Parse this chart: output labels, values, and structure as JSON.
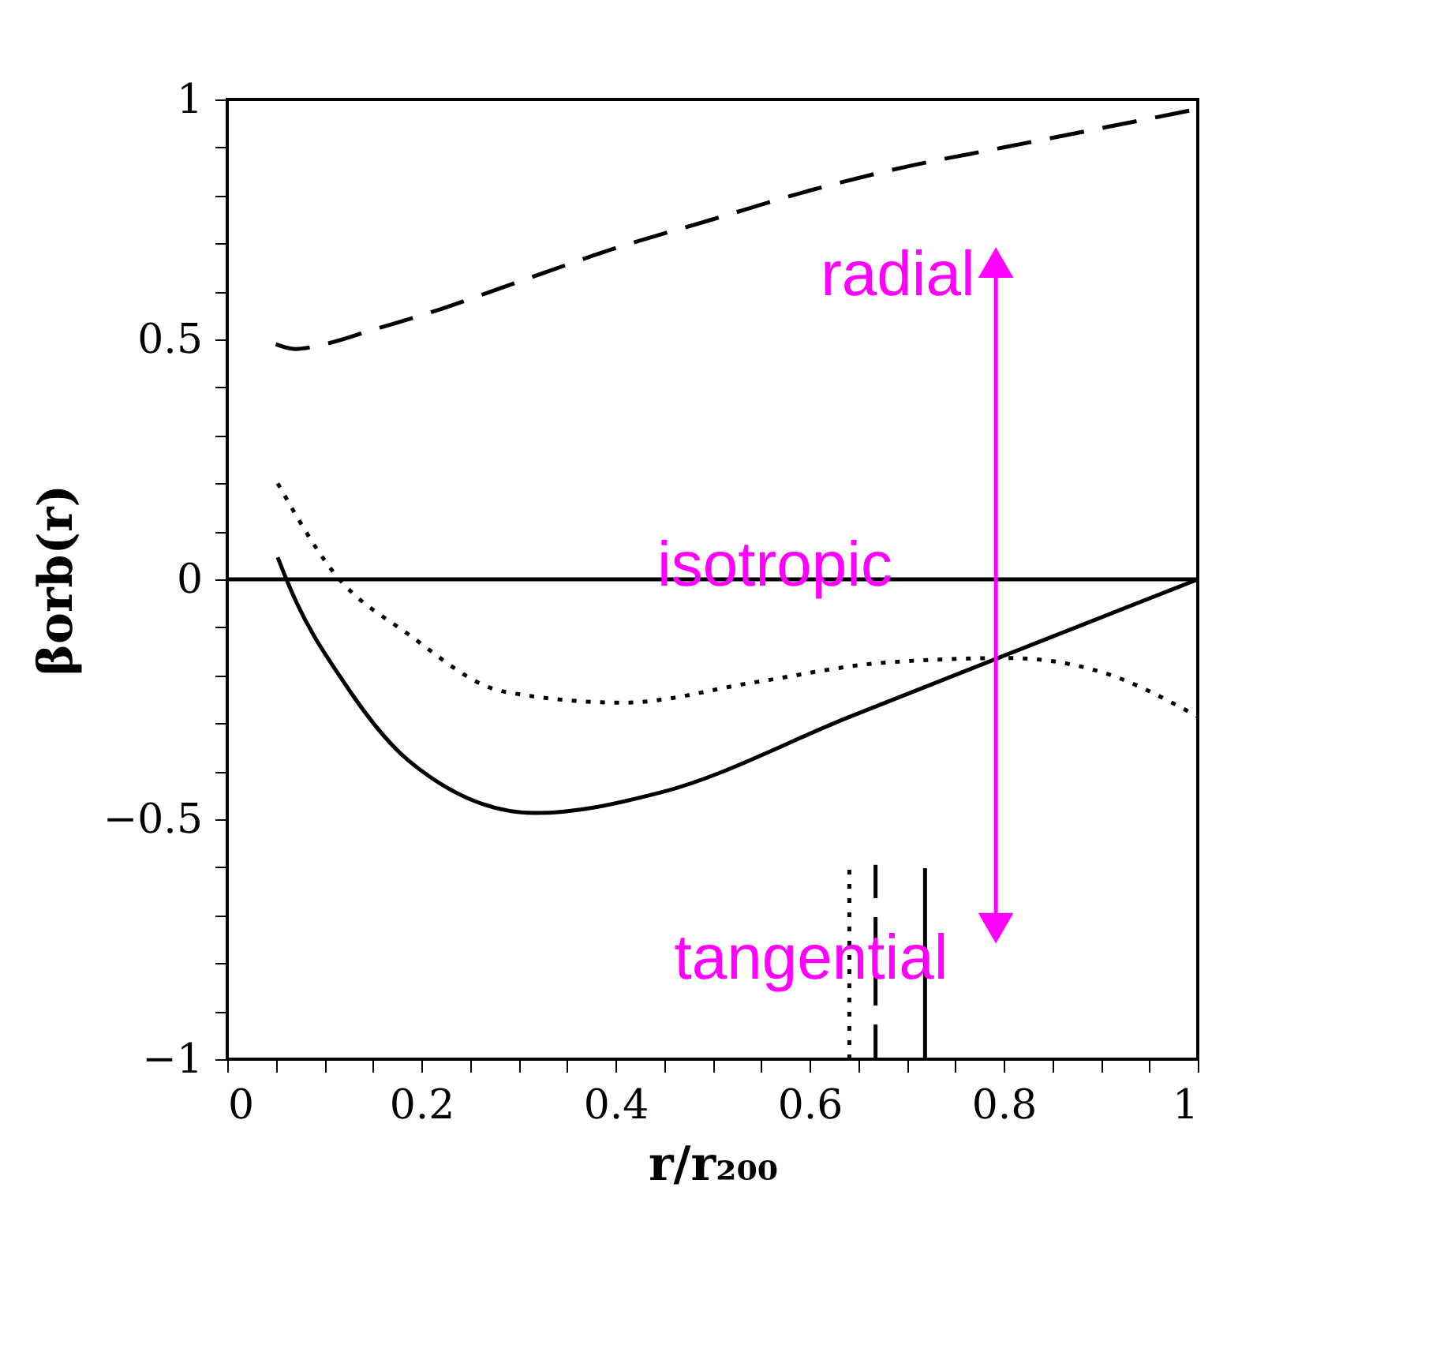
{
  "chart_data": {
    "type": "line",
    "xlabel": "r/r₂₀₀",
    "ylabel": "βorb(r)",
    "xlim": [
      0,
      1
    ],
    "ylim": [
      -1,
      1
    ],
    "xticks": [
      0,
      {
        "value": 0.05,
        "label": null
      },
      {
        "value": 0.1,
        "label": null
      },
      {
        "value": 0.15,
        "label": null
      },
      0.2,
      {
        "value": 0.25,
        "label": null
      },
      {
        "value": 0.3,
        "label": null
      },
      {
        "value": 0.35,
        "label": null
      },
      0.4,
      {
        "value": 0.45,
        "label": null
      },
      {
        "value": 0.5,
        "label": null
      },
      {
        "value": 0.55,
        "label": null
      },
      0.6,
      {
        "value": 0.65,
        "label": null
      },
      {
        "value": 0.7,
        "label": null
      },
      {
        "value": 0.75,
        "label": null
      },
      0.8,
      {
        "value": 0.85,
        "label": null
      },
      {
        "value": 0.9,
        "label": null
      },
      {
        "value": 0.95,
        "label": null
      },
      1
    ],
    "yticks": [
      {
        "value": -1,
        "label": "−1"
      },
      {
        "value": -0.9,
        "label": null
      },
      {
        "value": -0.8,
        "label": null
      },
      {
        "value": -0.7,
        "label": null
      },
      {
        "value": -0.6,
        "label": null
      },
      {
        "value": -0.5,
        "label": "−0.5"
      },
      {
        "value": -0.4,
        "label": null
      },
      {
        "value": -0.3,
        "label": null
      },
      {
        "value": -0.2,
        "label": null
      },
      {
        "value": -0.1,
        "label": null
      },
      0,
      {
        "value": 0.1,
        "label": null
      },
      {
        "value": 0.2,
        "label": null
      },
      {
        "value": 0.3,
        "label": null
      },
      {
        "value": 0.4,
        "label": null
      },
      0.5,
      {
        "value": 0.6,
        "label": null
      },
      {
        "value": 0.7,
        "label": null
      },
      {
        "value": 0.8,
        "label": null
      },
      {
        "value": 0.9,
        "label": null
      },
      1
    ],
    "grid": false,
    "marker": "none",
    "series": [
      {
        "color": "#000000",
        "line_style": "dashed",
        "x": [
          0.05,
          0.07,
          0.1,
          0.15,
          0.2,
          0.3,
          0.4,
          0.5,
          0.6,
          0.7,
          0.8,
          0.9,
          1.0
        ],
        "values": [
          0.49,
          0.48,
          0.49,
          0.52,
          0.55,
          0.62,
          0.69,
          0.75,
          0.81,
          0.86,
          0.9,
          0.94,
          0.98
        ]
      },
      {
        "color": "#000000",
        "line_style": "dotted",
        "x": [
          0.052,
          0.109,
          0.187,
          0.285,
          0.408,
          0.545,
          0.675,
          0.805,
          0.902,
          1.0
        ],
        "values": [
          0.2,
          0.016,
          -0.115,
          -0.234,
          -0.257,
          -0.214,
          -0.174,
          -0.164,
          -0.194,
          -0.286
        ]
      },
      {
        "color": "#000000",
        "line_style": "solid",
        "x": [
          0.052,
          0.063,
          0.122,
          0.187,
          0.317,
          0.447,
          0.642,
          0.798,
          1.0
        ],
        "values": [
          0.046,
          -0.01,
          -0.22,
          -0.378,
          -0.487,
          -0.444,
          -0.286,
          -0.161,
          0.0
        ]
      },
      {
        "color": "#000000",
        "line_style": "solid",
        "x": [
          0,
          1
        ],
        "values": [
          0,
          0
        ]
      },
      {
        "color": "#000000",
        "line_style": "dotted",
        "x": [
          0.641,
          0.641
        ],
        "values": [
          -1,
          -0.605
        ]
      },
      {
        "color": "#000000",
        "line_style": "dashed",
        "x": [
          0.668,
          0.668
        ],
        "values": [
          -1,
          -0.595
        ]
      },
      {
        "color": "#000000",
        "line_style": "solid",
        "x": [
          0.719,
          0.719
        ],
        "values": [
          -1,
          -0.602
        ]
      },
      {
        "color": "#ff00ff",
        "line_style": "solid",
        "marker": "triangle",
        "x": [
          0.792,
          0.792
        ],
        "values": [
          0.66,
          -0.727
        ]
      }
    ],
    "annotations": [
      "radial",
      "isotropic",
      "tangential"
    ]
  }
}
